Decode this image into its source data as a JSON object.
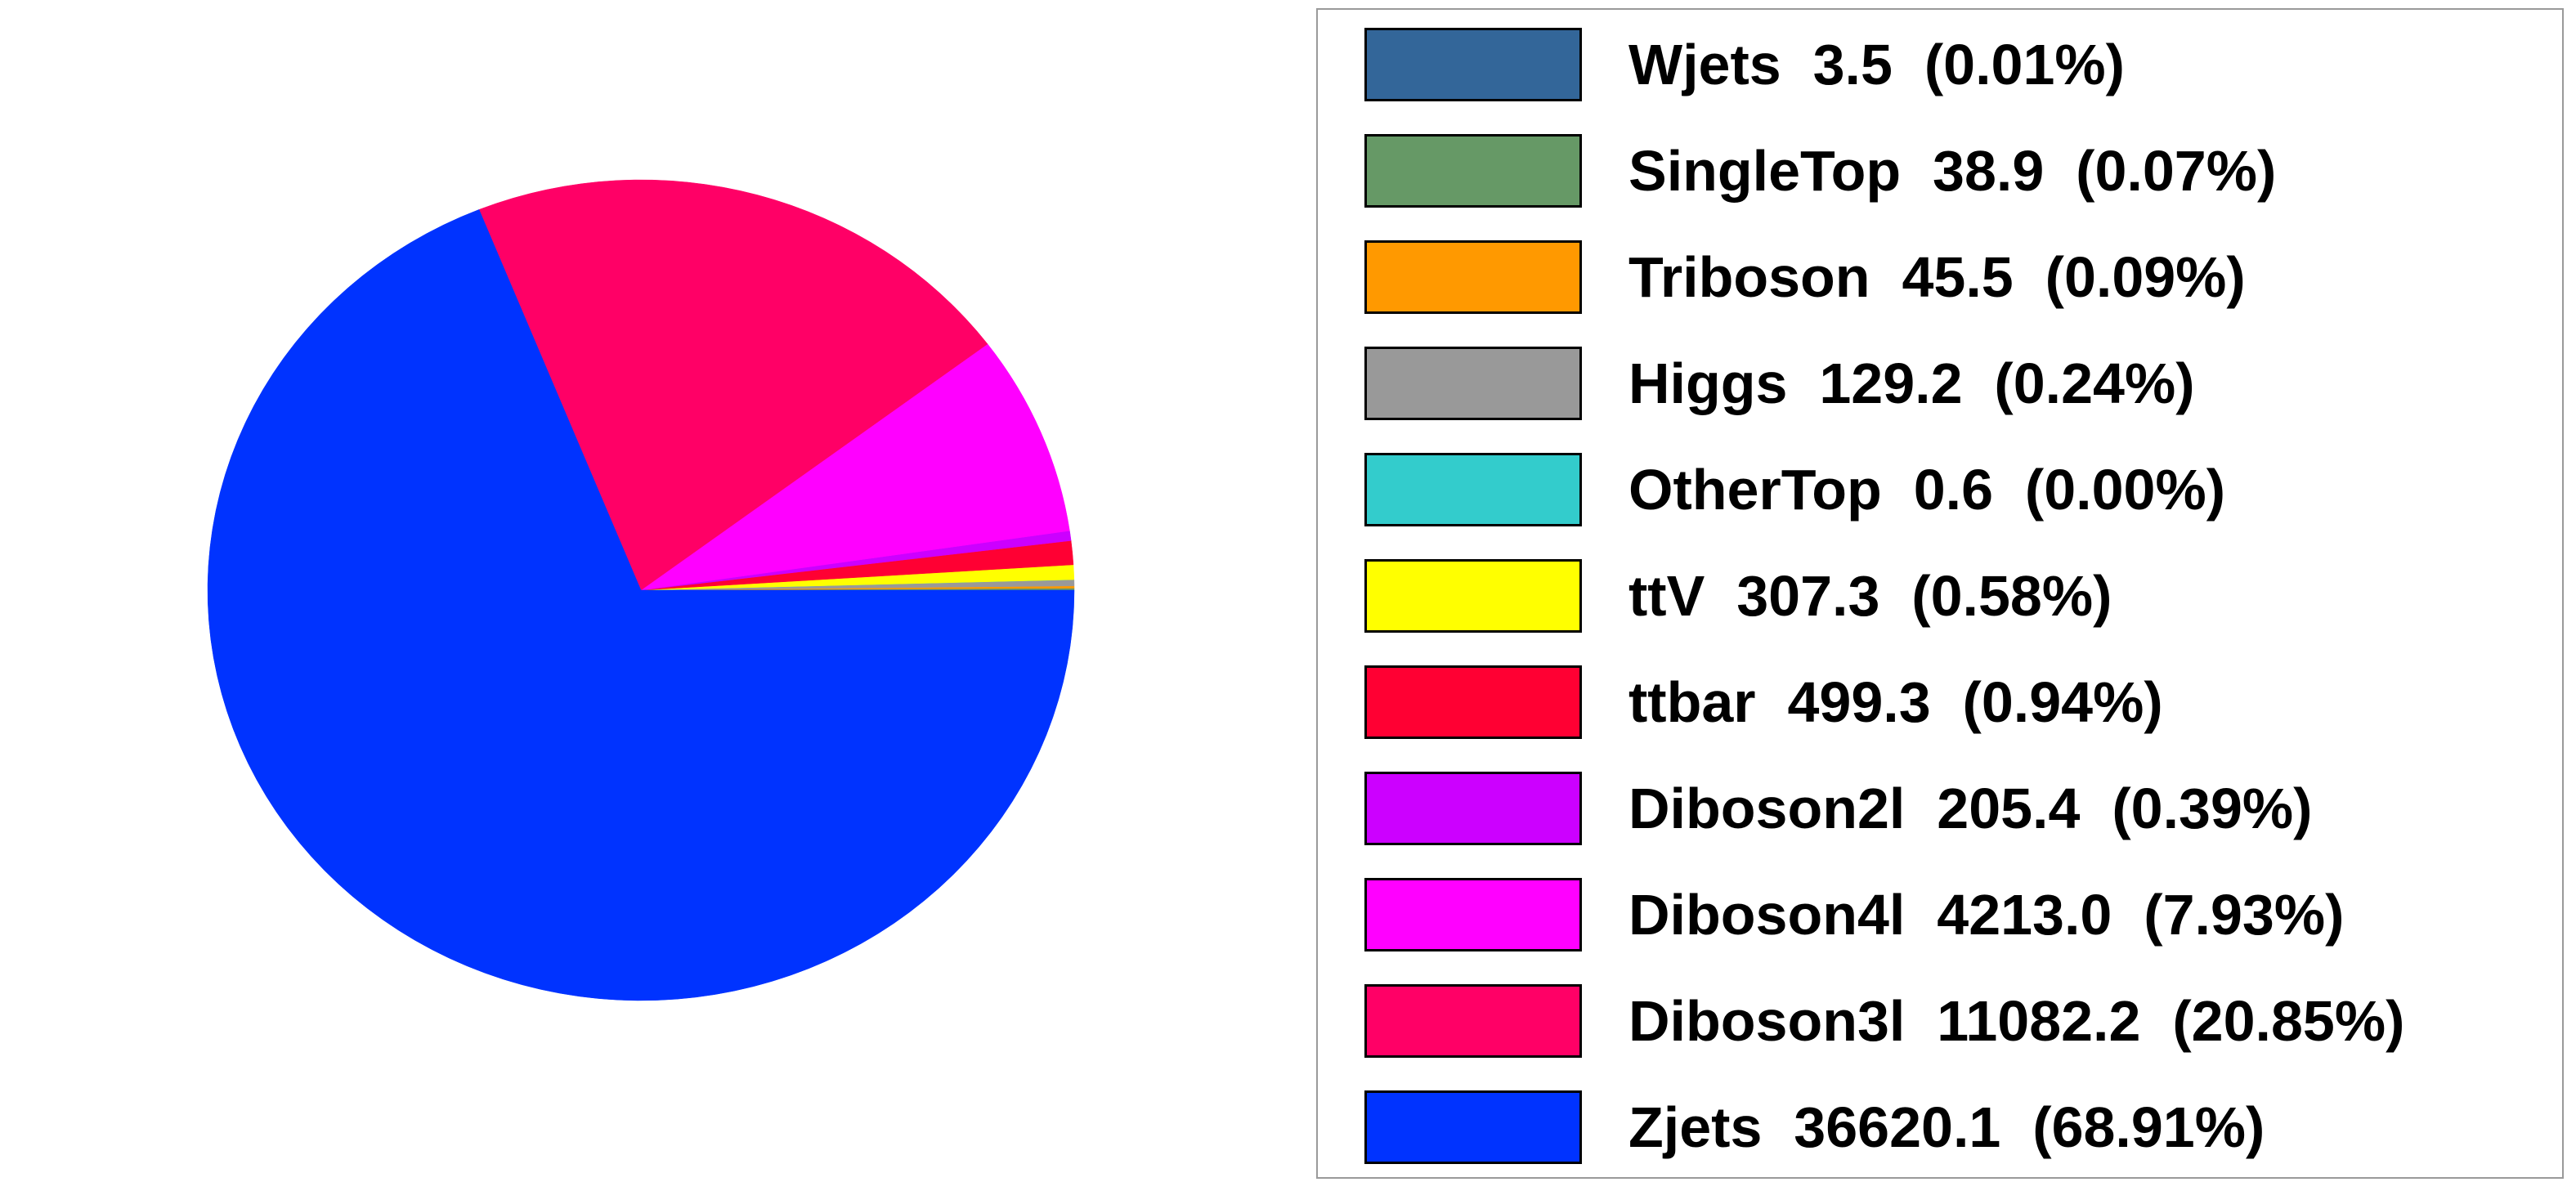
{
  "chart_data": {
    "type": "pie",
    "title": "",
    "legend_placement": "right",
    "slices": [
      {
        "label": "Wjets",
        "value": 3.5,
        "percent": "0.01%",
        "value_text": "3.5",
        "color": "#336699"
      },
      {
        "label": "SingleTop",
        "value": 38.9,
        "percent": "0.07%",
        "value_text": "38.9",
        "color": "#669966"
      },
      {
        "label": "Triboson",
        "value": 45.5,
        "percent": "0.09%",
        "value_text": "45.5",
        "color": "#ff9900"
      },
      {
        "label": "Higgs",
        "value": 129.2,
        "percent": "0.24%",
        "value_text": "129.2",
        "color": "#999999"
      },
      {
        "label": "OtherTop",
        "value": 0.6,
        "percent": "0.00%",
        "value_text": "0.6",
        "color": "#33cccc"
      },
      {
        "label": "ttV",
        "value": 307.3,
        "percent": "0.58%",
        "value_text": "307.3",
        "color": "#ffff00"
      },
      {
        "label": "ttbar",
        "value": 499.3,
        "percent": "0.94%",
        "value_text": "499.3",
        "color": "#ff0033"
      },
      {
        "label": "Diboson2l",
        "value": 205.4,
        "percent": "0.39%",
        "value_text": "205.4",
        "color": "#cc00ff"
      },
      {
        "label": "Diboson4l",
        "value": 4213.0,
        "percent": "7.93%",
        "value_text": "4213.0",
        "color": "#ff00ff"
      },
      {
        "label": "Diboson3l",
        "value": 11082.2,
        "percent": "20.85%",
        "value_text": "11082.2",
        "color": "#ff0066"
      },
      {
        "label": "Zjets",
        "value": 36620.1,
        "percent": "68.91%",
        "value_text": "36620.1",
        "color": "#0033ff"
      }
    ]
  }
}
